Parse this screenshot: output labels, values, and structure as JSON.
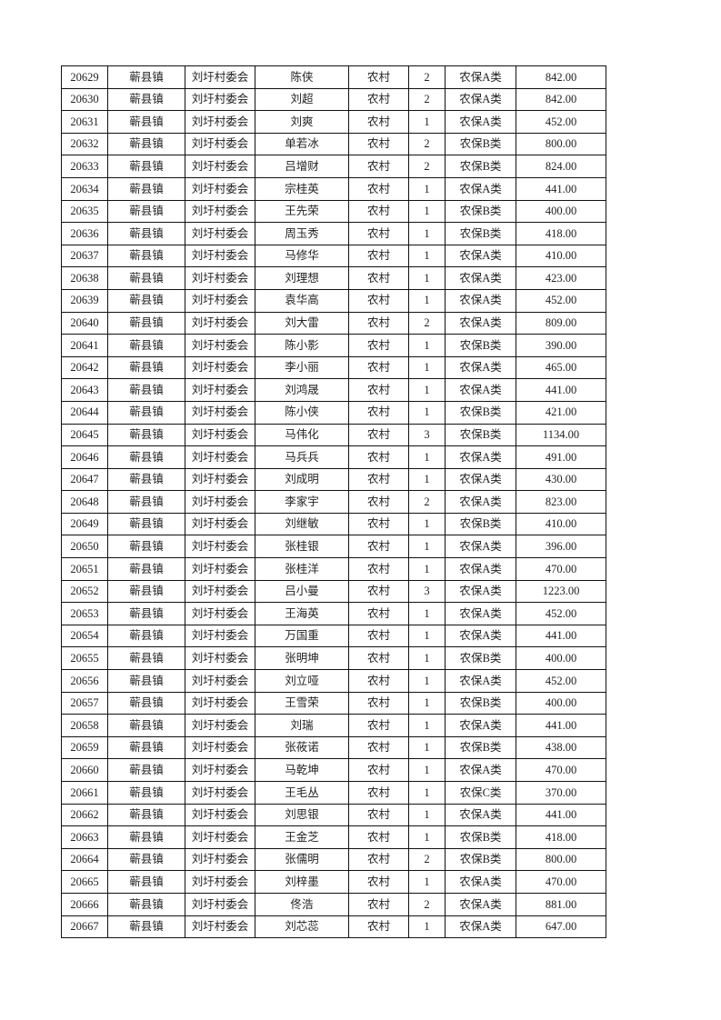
{
  "table": {
    "rows": [
      [
        "20629",
        "蕲县镇",
        "刘圩村委会",
        "陈侠",
        "农村",
        "2",
        "农保A类",
        "842.00"
      ],
      [
        "20630",
        "蕲县镇",
        "刘圩村委会",
        "刘超",
        "农村",
        "2",
        "农保A类",
        "842.00"
      ],
      [
        "20631",
        "蕲县镇",
        "刘圩村委会",
        "刘爽",
        "农村",
        "1",
        "农保A类",
        "452.00"
      ],
      [
        "20632",
        "蕲县镇",
        "刘圩村委会",
        "单若冰",
        "农村",
        "2",
        "农保B类",
        "800.00"
      ],
      [
        "20633",
        "蕲县镇",
        "刘圩村委会",
        "吕增财",
        "农村",
        "2",
        "农保B类",
        "824.00"
      ],
      [
        "20634",
        "蕲县镇",
        "刘圩村委会",
        "宗桂英",
        "农村",
        "1",
        "农保A类",
        "441.00"
      ],
      [
        "20635",
        "蕲县镇",
        "刘圩村委会",
        "王先荣",
        "农村",
        "1",
        "农保B类",
        "400.00"
      ],
      [
        "20636",
        "蕲县镇",
        "刘圩村委会",
        "周玉秀",
        "农村",
        "1",
        "农保B类",
        "418.00"
      ],
      [
        "20637",
        "蕲县镇",
        "刘圩村委会",
        "马修华",
        "农村",
        "1",
        "农保A类",
        "410.00"
      ],
      [
        "20638",
        "蕲县镇",
        "刘圩村委会",
        "刘理想",
        "农村",
        "1",
        "农保A类",
        "423.00"
      ],
      [
        "20639",
        "蕲县镇",
        "刘圩村委会",
        "袁华高",
        "农村",
        "1",
        "农保A类",
        "452.00"
      ],
      [
        "20640",
        "蕲县镇",
        "刘圩村委会",
        "刘大雷",
        "农村",
        "2",
        "农保A类",
        "809.00"
      ],
      [
        "20641",
        "蕲县镇",
        "刘圩村委会",
        "陈小影",
        "农村",
        "1",
        "农保B类",
        "390.00"
      ],
      [
        "20642",
        "蕲县镇",
        "刘圩村委会",
        "李小丽",
        "农村",
        "1",
        "农保A类",
        "465.00"
      ],
      [
        "20643",
        "蕲县镇",
        "刘圩村委会",
        "刘鸿晟",
        "农村",
        "1",
        "农保A类",
        "441.00"
      ],
      [
        "20644",
        "蕲县镇",
        "刘圩村委会",
        "陈小侠",
        "农村",
        "1",
        "农保B类",
        "421.00"
      ],
      [
        "20645",
        "蕲县镇",
        "刘圩村委会",
        "马伟化",
        "农村",
        "3",
        "农保B类",
        "1134.00"
      ],
      [
        "20646",
        "蕲县镇",
        "刘圩村委会",
        "马兵兵",
        "农村",
        "1",
        "农保A类",
        "491.00"
      ],
      [
        "20647",
        "蕲县镇",
        "刘圩村委会",
        "刘成明",
        "农村",
        "1",
        "农保A类",
        "430.00"
      ],
      [
        "20648",
        "蕲县镇",
        "刘圩村委会",
        "李家宇",
        "农村",
        "2",
        "农保A类",
        "823.00"
      ],
      [
        "20649",
        "蕲县镇",
        "刘圩村委会",
        "刘继敏",
        "农村",
        "1",
        "农保B类",
        "410.00"
      ],
      [
        "20650",
        "蕲县镇",
        "刘圩村委会",
        "张桂银",
        "农村",
        "1",
        "农保A类",
        "396.00"
      ],
      [
        "20651",
        "蕲县镇",
        "刘圩村委会",
        "张桂洋",
        "农村",
        "1",
        "农保A类",
        "470.00"
      ],
      [
        "20652",
        "蕲县镇",
        "刘圩村委会",
        "吕小曼",
        "农村",
        "3",
        "农保A类",
        "1223.00"
      ],
      [
        "20653",
        "蕲县镇",
        "刘圩村委会",
        "王海英",
        "农村",
        "1",
        "农保A类",
        "452.00"
      ],
      [
        "20654",
        "蕲县镇",
        "刘圩村委会",
        "万国重",
        "农村",
        "1",
        "农保A类",
        "441.00"
      ],
      [
        "20655",
        "蕲县镇",
        "刘圩村委会",
        "张明坤",
        "农村",
        "1",
        "农保B类",
        "400.00"
      ],
      [
        "20656",
        "蕲县镇",
        "刘圩村委会",
        "刘立哑",
        "农村",
        "1",
        "农保A类",
        "452.00"
      ],
      [
        "20657",
        "蕲县镇",
        "刘圩村委会",
        "王雪荣",
        "农村",
        "1",
        "农保B类",
        "400.00"
      ],
      [
        "20658",
        "蕲县镇",
        "刘圩村委会",
        "刘瑞",
        "农村",
        "1",
        "农保A类",
        "441.00"
      ],
      [
        "20659",
        "蕲县镇",
        "刘圩村委会",
        "张莜诺",
        "农村",
        "1",
        "农保B类",
        "438.00"
      ],
      [
        "20660",
        "蕲县镇",
        "刘圩村委会",
        "马乾坤",
        "农村",
        "1",
        "农保A类",
        "470.00"
      ],
      [
        "20661",
        "蕲县镇",
        "刘圩村委会",
        "王毛丛",
        "农村",
        "1",
        "农保C类",
        "370.00"
      ],
      [
        "20662",
        "蕲县镇",
        "刘圩村委会",
        "刘思银",
        "农村",
        "1",
        "农保A类",
        "441.00"
      ],
      [
        "20663",
        "蕲县镇",
        "刘圩村委会",
        "王金芝",
        "农村",
        "1",
        "农保B类",
        "418.00"
      ],
      [
        "20664",
        "蕲县镇",
        "刘圩村委会",
        "张儒明",
        "农村",
        "2",
        "农保B类",
        "800.00"
      ],
      [
        "20665",
        "蕲县镇",
        "刘圩村委会",
        "刘梓墨",
        "农村",
        "1",
        "农保A类",
        "470.00"
      ],
      [
        "20666",
        "蕲县镇",
        "刘圩村委会",
        "佟浩",
        "农村",
        "2",
        "农保A类",
        "881.00"
      ],
      [
        "20667",
        "蕲县镇",
        "刘圩村委会",
        "刘芯蕊",
        "农村",
        "1",
        "农保A类",
        "647.00"
      ]
    ]
  }
}
